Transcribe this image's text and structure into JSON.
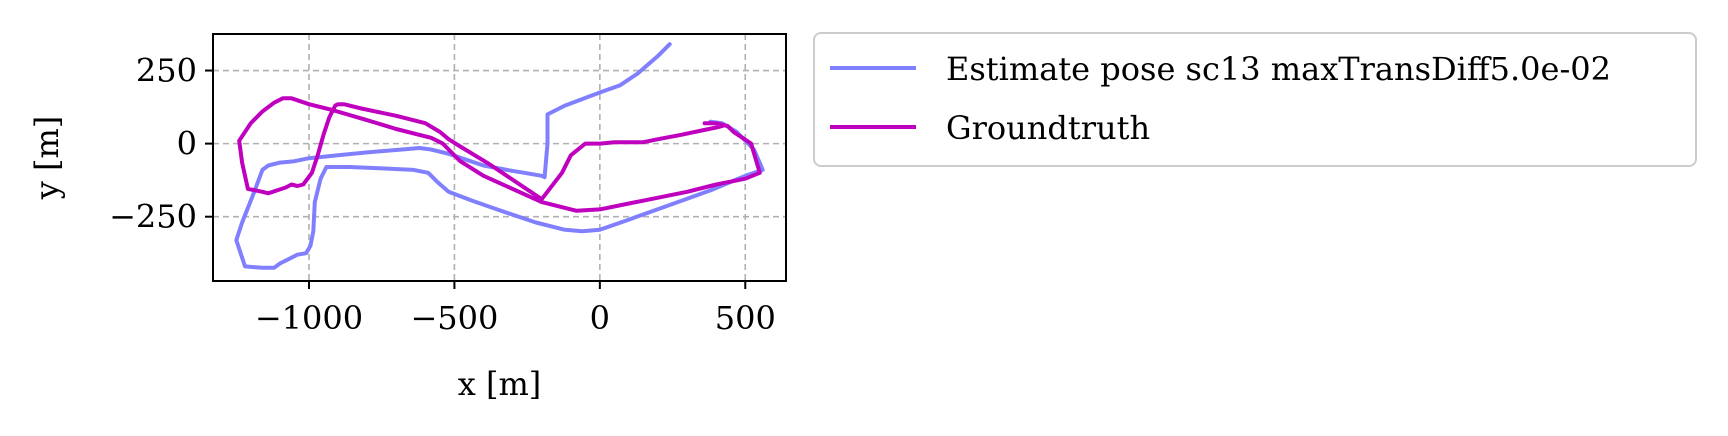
{
  "chart_data": {
    "type": "line",
    "xlabel": "x [m]",
    "ylabel": "y [m]",
    "xlim": [
      -1330,
      640
    ],
    "ylim": [
      -470,
      375
    ],
    "grid": true,
    "legend_position": "outside-right-top",
    "x_ticks": [
      {
        "value": -1000,
        "label": "−1000"
      },
      {
        "value": -500,
        "label": "−500"
      },
      {
        "value": 0,
        "label": "0"
      },
      {
        "value": 500,
        "label": "500"
      }
    ],
    "y_ticks": [
      {
        "value": 250,
        "label": "250"
      },
      {
        "value": 0,
        "label": "0"
      },
      {
        "value": -250,
        "label": "−250"
      }
    ],
    "series": [
      {
        "name": "Estimate pose sc13 maxTransDiff5.0e-02",
        "color": "#8080ff",
        "x": [
          240,
          200,
          130,
          70,
          0,
          -120,
          -180,
          -180,
          -190,
          -200,
          -260,
          -320,
          -400,
          -460,
          -520,
          -580,
          -620,
          -680,
          -800,
          -900,
          -1000,
          -1050,
          -1100,
          -1140,
          -1160,
          -1190,
          -1230,
          -1250,
          -1220,
          -1160,
          -1120,
          -1100,
          -1040,
          -1010,
          -995,
          -985,
          -980,
          -960,
          -940,
          -860,
          -740,
          -640,
          -590,
          -560,
          -520,
          -440,
          -340,
          -220,
          -120,
          -60,
          0,
          100,
          240,
          380,
          500,
          560,
          530,
          470,
          420,
          380
        ],
        "y": [
          340,
          300,
          240,
          200,
          175,
          130,
          100,
          0,
          -115,
          -110,
          -100,
          -90,
          -75,
          -55,
          -35,
          -20,
          -15,
          -20,
          -30,
          -40,
          -50,
          -60,
          -65,
          -75,
          -90,
          -170,
          -270,
          -330,
          -420,
          -425,
          -425,
          -410,
          -380,
          -375,
          -350,
          -300,
          -200,
          -120,
          -80,
          -80,
          -85,
          -90,
          -100,
          -130,
          -165,
          -195,
          -230,
          -270,
          -295,
          -300,
          -295,
          -260,
          -210,
          -160,
          -110,
          -90,
          -20,
          40,
          70,
          75
        ]
      },
      {
        "name": "Groundtruth",
        "color": "#bf00bf",
        "x": [
          360,
          400,
          440,
          460,
          520,
          550,
          500,
          400,
          300,
          200,
          100,
          0,
          -80,
          -200,
          -300,
          -400,
          -480,
          -540,
          -580,
          -700,
          -800,
          -920,
          -1000,
          -1060,
          -1090,
          -1120,
          -1160,
          -1200,
          -1240,
          -1230,
          -1210,
          -1160,
          -1140,
          -1110,
          -1080,
          -1060,
          -1040,
          -1020,
          -990,
          -970,
          -950,
          -930,
          -910,
          -900,
          -880,
          -820,
          -700,
          -600,
          -550,
          -520,
          -480,
          -380,
          -200,
          -130,
          -100,
          -50,
          0,
          50,
          100,
          150,
          200,
          280,
          350,
          400,
          420
        ],
        "y": [
          70,
          70,
          60,
          40,
          0,
          -100,
          -120,
          -140,
          -165,
          -185,
          -205,
          -225,
          -230,
          -200,
          -155,
          -110,
          -60,
          0,
          20,
          50,
          80,
          115,
          135,
          155,
          155,
          140,
          110,
          70,
          10,
          -65,
          -155,
          -165,
          -170,
          -160,
          -150,
          -140,
          -145,
          -140,
          -100,
          -40,
          30,
          90,
          130,
          135,
          135,
          120,
          95,
          70,
          40,
          15,
          -10,
          -70,
          -190,
          -100,
          -40,
          0,
          0,
          5,
          5,
          5,
          15,
          30,
          45,
          55,
          60
        ]
      }
    ]
  }
}
